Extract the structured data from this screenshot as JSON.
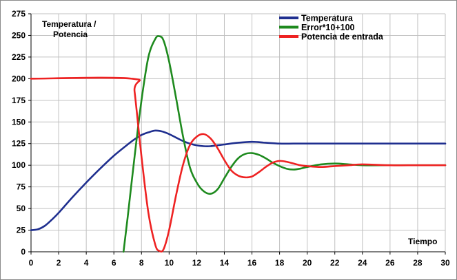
{
  "chart_data": {
    "type": "line",
    "title": "",
    "ylabel_lines": [
      "Temperatura /",
      "Potencia"
    ],
    "xlabel": "Tiempo",
    "xlim": [
      0,
      30
    ],
    "ylim": [
      0,
      275
    ],
    "x_ticks": [
      0,
      2,
      4,
      6,
      8,
      10,
      12,
      14,
      16,
      18,
      20,
      22,
      24,
      26,
      28,
      30
    ],
    "y_ticks": [
      0,
      25,
      50,
      75,
      100,
      125,
      150,
      175,
      200,
      225,
      250,
      275
    ],
    "grid": true,
    "legend_position": "top-right",
    "series": [
      {
        "name": "Temperatura",
        "color": "#1f2f8f",
        "x": [
          0,
          0.5,
          1,
          1.5,
          2,
          3,
          4,
          5,
          6,
          7,
          7.5,
          8,
          8.5,
          9,
          9.5,
          10,
          10.5,
          11,
          11.5,
          12,
          12.5,
          13,
          13.5,
          14,
          15,
          16,
          17,
          18,
          19,
          20,
          22,
          24,
          26,
          28,
          30
        ],
        "y": [
          25,
          26,
          30,
          37,
          45,
          63,
          80,
          96,
          111,
          124,
          130,
          135,
          138,
          140,
          139,
          136,
          132,
          128,
          125,
          123,
          122,
          122,
          123,
          124,
          126,
          127,
          126,
          125,
          125,
          125,
          125,
          125,
          125,
          125,
          125
        ]
      },
      {
        "name": "Error*10+100",
        "color": "#1e8a1e",
        "x": [
          6.7,
          7,
          7.5,
          8,
          8.5,
          9,
          9.3,
          9.6,
          10,
          10.5,
          11,
          11.5,
          12,
          12.5,
          13,
          13.5,
          14,
          14.5,
          15,
          15.5,
          16,
          16.5,
          17,
          17.5,
          18,
          18.5,
          19,
          19.5,
          20,
          21,
          22,
          23,
          24,
          26,
          28,
          30
        ],
        "y": [
          0,
          40,
          110,
          175,
          225,
          246,
          249,
          244,
          220,
          178,
          134,
          98,
          80,
          70,
          67,
          72,
          85,
          98,
          108,
          113,
          114,
          112,
          108,
          103,
          99,
          96,
          95,
          96,
          98,
          101,
          102,
          101,
          100,
          100,
          100,
          100
        ]
      },
      {
        "name": "Potencia de entrada",
        "color": "#ee2222",
        "x": [
          0,
          7.3,
          7.5,
          8,
          8.5,
          9,
          9.3,
          9.6,
          10,
          10.5,
          11,
          11.5,
          12,
          12.5,
          13,
          13.5,
          14,
          14.5,
          15,
          15.5,
          16,
          16.5,
          17,
          17.5,
          18,
          18.5,
          19,
          19.5,
          20,
          21,
          22,
          23,
          24,
          26,
          28,
          30
        ],
        "y": [
          200,
          200,
          185,
          110,
          45,
          8,
          1,
          3,
          25,
          65,
          100,
          123,
          133,
          136,
          131,
          120,
          106,
          94,
          88,
          86,
          87,
          92,
          98,
          103,
          105,
          104,
          102,
          100,
          99,
          98,
          99,
          100,
          101,
          100,
          100,
          100
        ]
      }
    ]
  }
}
